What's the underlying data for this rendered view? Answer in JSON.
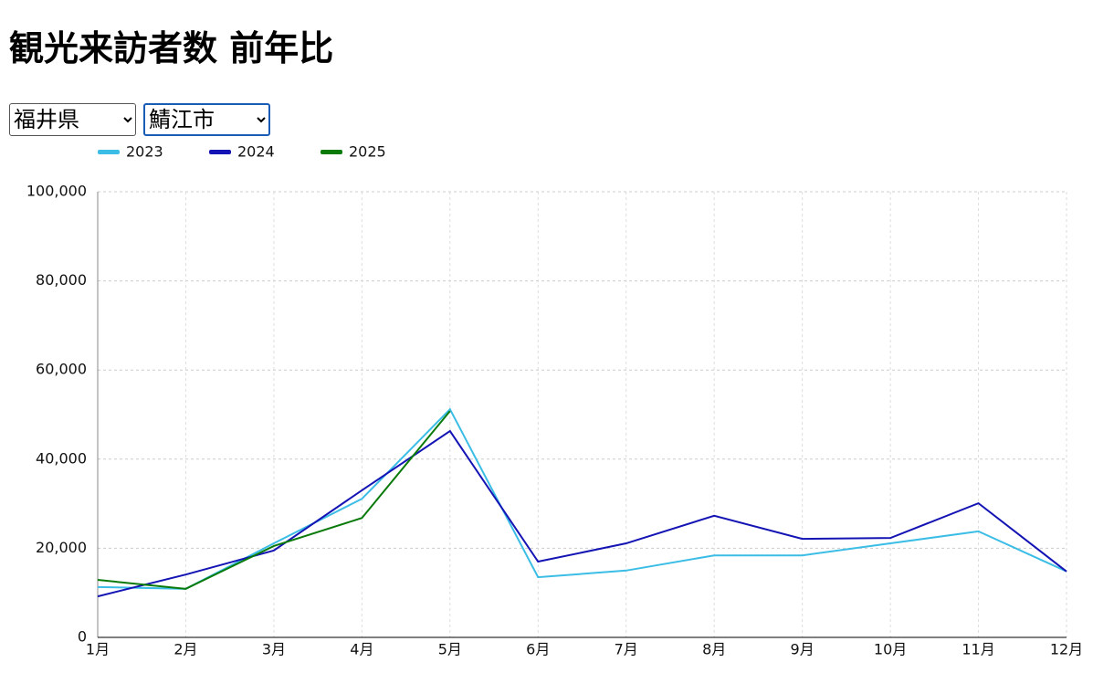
{
  "controls": {
    "prefecture": "福井県",
    "city": "鯖江市"
  },
  "chart_data": {
    "type": "line",
    "title": "観光来訪者数 前年比",
    "categories": [
      "1月",
      "2月",
      "3月",
      "4月",
      "5月",
      "6月",
      "7月",
      "8月",
      "9月",
      "10月",
      "11月",
      "12月"
    ],
    "series": [
      {
        "name": "2023",
        "color": "#3bbde6",
        "values": [
          11300,
          10900,
          21100,
          31100,
          51200,
          13500,
          15000,
          18400,
          18400,
          21100,
          23800,
          14800
        ]
      },
      {
        "name": "2024",
        "color": "#1414b4",
        "values": [
          9200,
          14100,
          19500,
          33000,
          46300,
          17000,
          21100,
          27300,
          22100,
          22300,
          30100,
          14800
        ]
      },
      {
        "name": "2025",
        "color": "#0a7a0a",
        "values": [
          12900,
          10900,
          20500,
          26800,
          50800,
          null,
          null,
          null,
          null,
          null,
          null,
          null
        ]
      }
    ],
    "ylim": [
      0,
      100000
    ],
    "yticks": [
      0,
      {
        "value": 20000,
        "label": "20,000"
      },
      {
        "value": 40000,
        "label": "40,000"
      },
      {
        "value": 60000,
        "label": "60,000"
      },
      {
        "value": 80000,
        "label": "80,000"
      },
      {
        "value": 100000,
        "label": "100,000"
      }
    ],
    "grid": true,
    "legend": "top-left"
  }
}
